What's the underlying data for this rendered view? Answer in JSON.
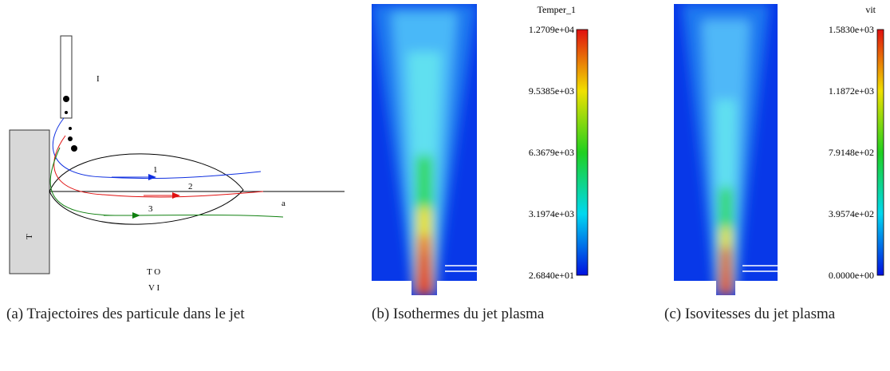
{
  "figures": [
    {
      "caption": "(a) Trajectoires des particule dans le jet",
      "labels": [
        "I",
        "1",
        "2",
        "3",
        "a",
        "T",
        "T O",
        "V I"
      ]
    },
    {
      "caption": "(b) Isothermes du jet plasma",
      "colorbar": {
        "title": "Temper_1",
        "ticks": [
          "1.2709e+04",
          "9.5385e+03",
          "6.3679e+03",
          "3.1974e+03",
          "2.6840e+01"
        ]
      }
    },
    {
      "caption": "(c) Isovitesses du jet plasma",
      "colorbar": {
        "title": "vit",
        "ticks": [
          "1.5830e+03",
          "1.1872e+03",
          "7.9148e+02",
          "3.9574e+02",
          "0.0000e+00"
        ]
      }
    }
  ]
}
